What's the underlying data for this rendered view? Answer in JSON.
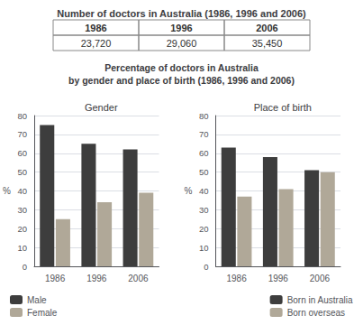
{
  "chart_data": [
    {
      "type": "table",
      "title": "Number of doctors in Australia (1986, 1996 and 2006)",
      "categories": [
        "1986",
        "1996",
        "2006"
      ],
      "values": [
        23720,
        29060,
        35450
      ],
      "value_labels": [
        "23,720",
        "29,060",
        "35,450"
      ],
      "data_labels": true
    },
    {
      "type": "bar",
      "title": "Gender",
      "annotations": [
        "Percentage of doctors in Australia",
        "by gender and place of birth (1986, 1996 and 2006)"
      ],
      "categories": [
        "1986",
        "1996",
        "2006"
      ],
      "series": [
        {
          "name": "Male",
          "color": "#3d3d3d",
          "values": [
            75,
            65,
            62
          ]
        },
        {
          "name": "Female",
          "color": "#b0a898",
          "values": [
            25,
            34,
            39
          ]
        }
      ],
      "ylabel": "%",
      "ylim": [
        0,
        80
      ],
      "yticks": [
        0,
        10,
        20,
        30,
        40,
        50,
        60,
        70,
        80
      ],
      "grid": true,
      "legend": "lower left"
    },
    {
      "type": "bar",
      "title": "Place of birth",
      "categories": [
        "1986",
        "1996",
        "2006"
      ],
      "series": [
        {
          "name": "Born in Australia",
          "color": "#3d3d3d",
          "values": [
            63,
            58,
            51
          ]
        },
        {
          "name": "Born overseas",
          "color": "#b0a898",
          "values": [
            37,
            41,
            50
          ]
        }
      ],
      "ylabel": "%",
      "ylim": [
        0,
        80
      ],
      "yticks": [
        0,
        10,
        20,
        30,
        40,
        50,
        60,
        70,
        80
      ],
      "grid": true,
      "legend": "lower right"
    }
  ]
}
